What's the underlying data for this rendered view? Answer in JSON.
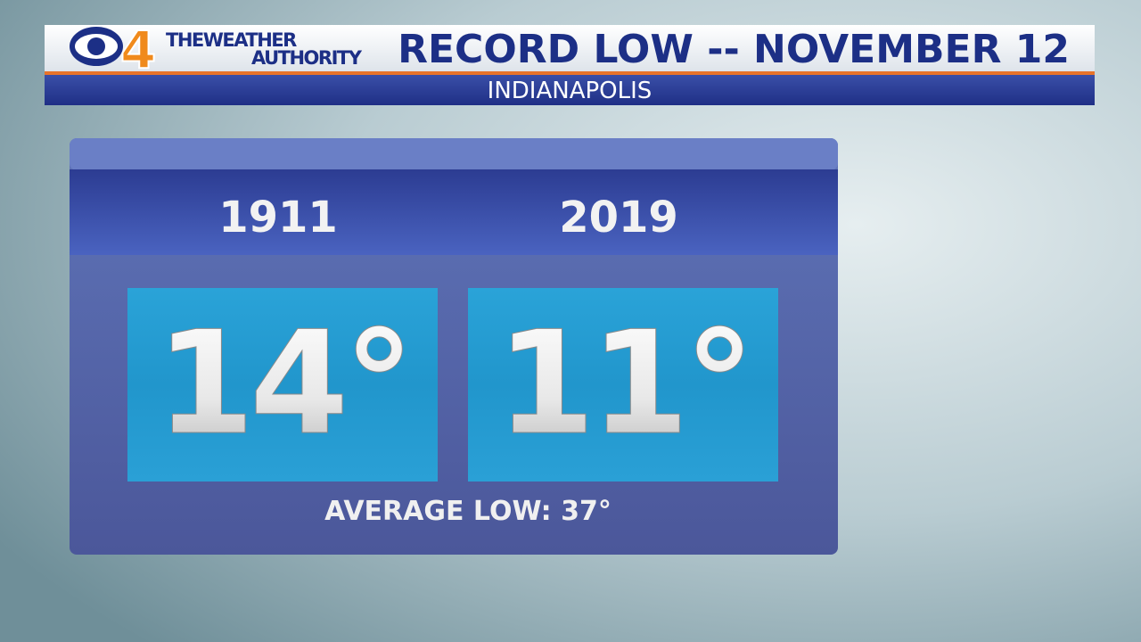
{
  "header": {
    "logo_number": "4",
    "brand_line1": "THEWEATHER",
    "brand_line2": "AUTHORITY",
    "title": "RECORD LOW -- NOVEMBER 12",
    "subtitle": "INDIANAPOLIS"
  },
  "records": [
    {
      "year": "1911",
      "temperature": "14°"
    },
    {
      "year": "2019",
      "temperature": "11°"
    }
  ],
  "footer": "AVERAGE LOW: 37°"
}
